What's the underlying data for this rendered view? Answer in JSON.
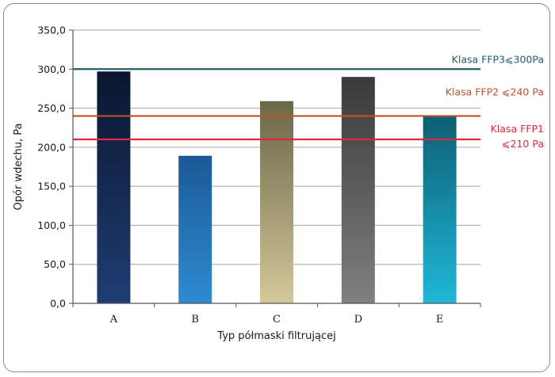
{
  "chart_data": {
    "type": "bar",
    "xlabel": "Typ półmaski filtrującej",
    "ylabel": "Opór wdechu, Pa",
    "categories": [
      "A",
      "B",
      "C",
      "D",
      "E"
    ],
    "values": [
      297,
      189,
      259,
      290,
      240
    ],
    "ylim": [
      0,
      350
    ],
    "yticks": [
      "0,0",
      "50,0",
      "100,0",
      "150,0",
      "200,0",
      "250,0",
      "300,0",
      "350,0"
    ],
    "ytick_values": [
      0,
      50,
      100,
      150,
      200,
      250,
      300,
      350
    ],
    "grid": true,
    "bar_gradients": [
      [
        "#0a1630",
        "#1f3d73"
      ],
      [
        "#1b5a96",
        "#2e8ad0"
      ],
      [
        "#6b6648",
        "#d4c89a"
      ],
      [
        "#3a3a3a",
        "#808080"
      ],
      [
        "#0d5f74",
        "#1fb8d8"
      ]
    ],
    "reference_lines": [
      {
        "value": 300,
        "label_lines": [
          "Klasa FFP3⩽300Pa"
        ],
        "color": "#1d5d6c"
      },
      {
        "value": 240,
        "label_lines": [
          "Klasa FFP2 ⩽240 Pa"
        ],
        "color": "#c0512a"
      },
      {
        "value": 210,
        "label_lines": [
          "Klasa FFP1",
          "⩽210 Pa"
        ],
        "color": "#e0283a"
      }
    ]
  }
}
